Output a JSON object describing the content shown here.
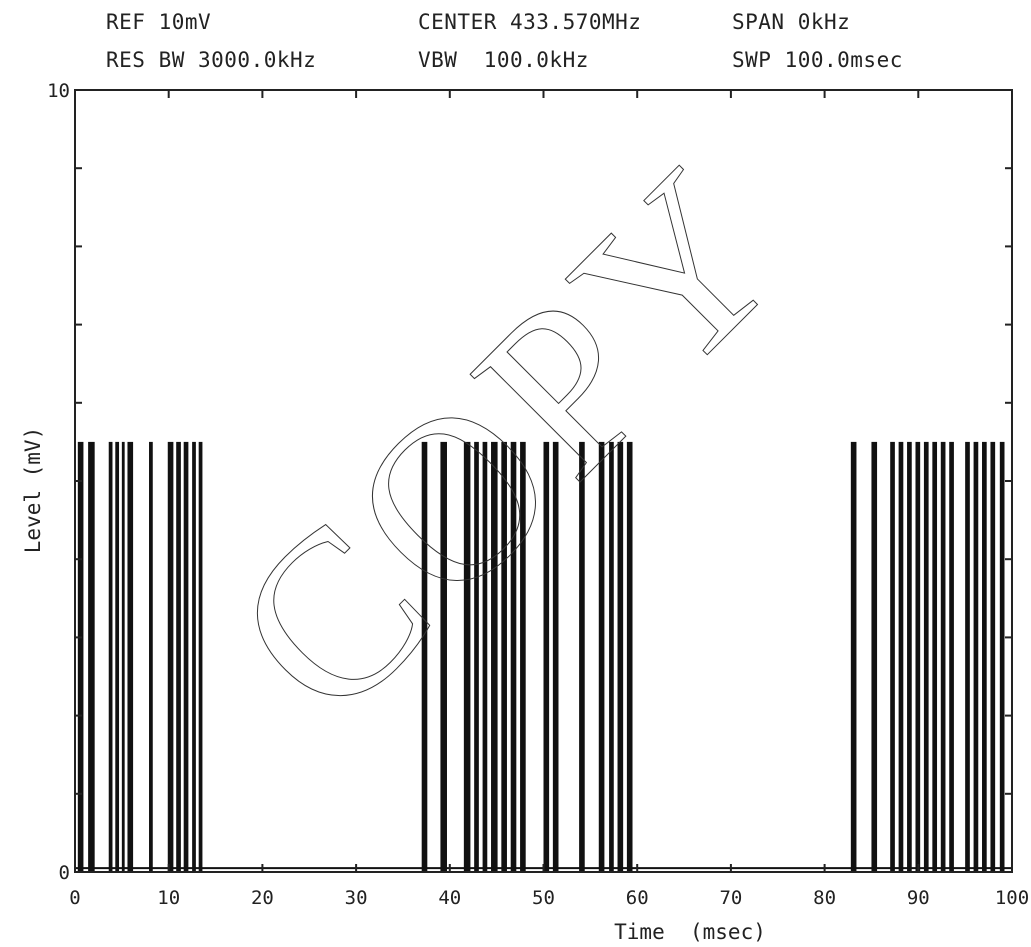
{
  "header": {
    "ref": "REF 10mV",
    "center": "CENTER 433.570MHz",
    "span": "SPAN 0kHz",
    "res_bw": "RES BW 3000.0kHz",
    "vbw": "VBW  100.0kHz",
    "swp": "SWP 100.0msec"
  },
  "watermark": "COPY",
  "chart_data": {
    "type": "line",
    "xlabel": "Time  (msec)",
    "ylabel": "Level (mV)",
    "xlim": [
      0,
      100
    ],
    "ylim": [
      0,
      10
    ],
    "x_ticks": [
      0,
      10,
      20,
      30,
      40,
      50,
      60,
      70,
      80,
      90,
      100
    ],
    "y_tick_labels": [
      {
        "value": 10,
        "label": "10"
      },
      {
        "value": 0,
        "label": "0"
      }
    ],
    "grid": false,
    "pulse_level": 5.5,
    "baseline_level": 0.05,
    "pulses": [
      [
        0.3,
        0.9
      ],
      [
        1.4,
        2.1
      ],
      [
        3.6,
        4.0
      ],
      [
        4.3,
        4.7
      ],
      [
        5.0,
        5.3
      ],
      [
        5.6,
        6.2
      ],
      [
        7.9,
        8.3
      ],
      [
        9.9,
        10.5
      ],
      [
        10.8,
        11.3
      ],
      [
        11.6,
        12.1
      ],
      [
        12.5,
        12.9
      ],
      [
        13.2,
        13.6
      ],
      [
        37.0,
        37.6
      ],
      [
        39.0,
        39.7
      ],
      [
        41.5,
        42.2
      ],
      [
        42.6,
        43.1
      ],
      [
        43.5,
        44.0
      ],
      [
        44.4,
        45.1
      ],
      [
        45.5,
        46.1
      ],
      [
        46.5,
        47.1
      ],
      [
        47.5,
        48.1
      ],
      [
        50.0,
        50.6
      ],
      [
        51.0,
        51.6
      ],
      [
        53.8,
        54.4
      ],
      [
        55.9,
        56.5
      ],
      [
        57.0,
        57.5
      ],
      [
        57.9,
        58.5
      ],
      [
        58.9,
        59.5
      ],
      [
        82.8,
        83.4
      ],
      [
        85.0,
        85.6
      ],
      [
        87.0,
        87.5
      ],
      [
        87.9,
        88.4
      ],
      [
        88.8,
        89.3
      ],
      [
        89.7,
        90.2
      ],
      [
        90.6,
        91.1
      ],
      [
        91.5,
        92.0
      ],
      [
        92.4,
        92.9
      ],
      [
        93.3,
        93.8
      ],
      [
        95.0,
        95.5
      ],
      [
        95.9,
        96.4
      ],
      [
        96.8,
        97.3
      ],
      [
        97.7,
        98.2
      ],
      [
        98.7,
        99.2
      ]
    ]
  }
}
